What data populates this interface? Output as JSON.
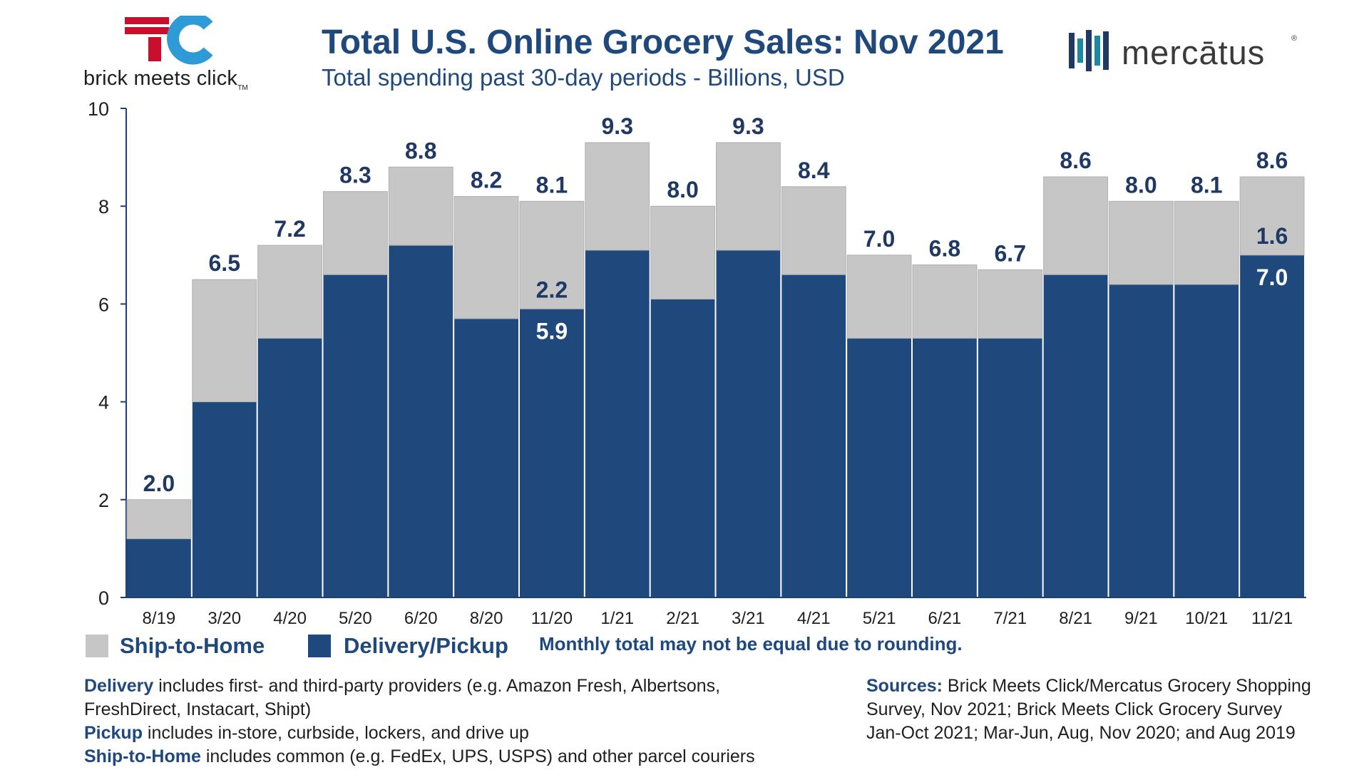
{
  "header": {
    "title": "Total U.S. Online Grocery Sales: Nov 2021",
    "subtitle": "Total spending past 30-day periods - Billions, USD",
    "left_logo_text": "brick meets click",
    "left_logo_tm": "TM",
    "right_logo_text": "mercātus",
    "right_logo_reg": "®"
  },
  "colors": {
    "delivery_pickup": "#1f497d",
    "ship_to_home": "#c6c6c6",
    "axis": "#1f3f75",
    "label_dark": "#1f3864",
    "label_light": "#ffffff",
    "logo_red": "#c8102e",
    "logo_blue": "#2e9bd6",
    "logo_teal": "#1b8aa1",
    "logo_navy": "#1f3864"
  },
  "chart_data": {
    "type": "bar",
    "stacked": true,
    "categories": [
      "8/19",
      "3/20",
      "4/20",
      "5/20",
      "6/20",
      "8/20",
      "11/20",
      "1/21",
      "2/21",
      "3/21",
      "4/21",
      "5/21",
      "6/21",
      "7/21",
      "8/21",
      "9/21",
      "10/21",
      "11/21"
    ],
    "series": [
      {
        "name": "Delivery/Pickup",
        "values": [
          1.2,
          4.0,
          5.3,
          6.6,
          7.2,
          5.7,
          5.9,
          7.1,
          6.1,
          7.1,
          6.6,
          5.3,
          5.3,
          5.3,
          6.6,
          6.4,
          6.4,
          7.0
        ]
      },
      {
        "name": "Ship-to-Home",
        "values": [
          0.8,
          2.5,
          1.9,
          1.7,
          1.6,
          2.5,
          2.2,
          2.2,
          1.9,
          2.2,
          1.8,
          1.7,
          1.5,
          1.4,
          2.0,
          1.7,
          1.7,
          1.6
        ]
      }
    ],
    "totals": [
      "2.0",
      "6.5",
      "7.2",
      "8.3",
      "8.8",
      "8.2",
      "8.1",
      "9.3",
      "8.0",
      "9.3",
      "8.4",
      "7.0",
      "6.8",
      "6.7",
      "8.6",
      "8.0",
      "8.1",
      "8.6"
    ],
    "segment_labels": [
      {
        "category": "11/20",
        "series": "Ship-to-Home",
        "text": "2.2"
      },
      {
        "category": "11/20",
        "series": "Delivery/Pickup",
        "text": "5.9"
      },
      {
        "category": "11/21",
        "series": "Ship-to-Home",
        "text": "1.6"
      },
      {
        "category": "11/21",
        "series": "Delivery/Pickup",
        "text": "7.0"
      }
    ],
    "ylim": [
      0,
      10
    ],
    "yticks": [
      "0",
      "2",
      "4",
      "6",
      "8",
      "10"
    ],
    "xlabel": "",
    "ylabel": "",
    "legend": "bottom-left"
  },
  "legend": {
    "ship_to_home": "Ship-to-Home",
    "delivery_pickup": "Delivery/Pickup",
    "note": "Monthly total may not be equal due to rounding."
  },
  "notes": {
    "delivery_term": "Delivery",
    "delivery_text_1": " includes first- and third-party providers (e.g. Amazon Fresh, Albertsons,",
    "delivery_text_2": "FreshDirect, Instacart, Shipt)",
    "pickup_term": "Pickup",
    "pickup_text": " includes in-store, curbside, lockers, and drive up",
    "ship_term": "Ship-to-Home",
    "ship_text": " includes common (e.g. FedEx, UPS, USPS) and other parcel couriers"
  },
  "sources": {
    "term": "Sources:",
    "line_1": " Brick Meets Click/Mercatus Grocery Shopping",
    "line_2": "Survey, Nov 2021; Brick Meets Click Grocery Survey",
    "line_3": "Jan-Oct 2021; Mar-Jun, Aug, Nov 2020; and Aug 2019"
  }
}
